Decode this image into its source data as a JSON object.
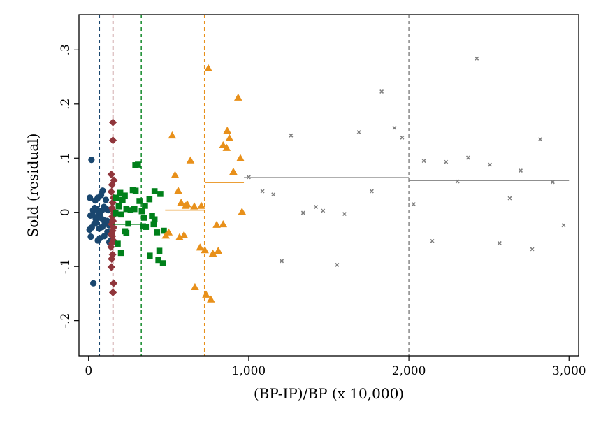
{
  "chart_data": {
    "type": "scatter",
    "title": "",
    "xlabel": "(BP-IP)/BP (x 10,000)",
    "ylabel": "Sold (residual)",
    "xlim": [
      -60,
      3060
    ],
    "ylim": [
      -0.265,
      0.365
    ],
    "grid": false,
    "legend": "none",
    "x_ticks": [
      {
        "value": 0,
        "label": "0"
      },
      {
        "value": 1000,
        "label": "1,000"
      },
      {
        "value": 2000,
        "label": "2,000"
      },
      {
        "value": 3000,
        "label": "3,000"
      }
    ],
    "y_ticks": [
      {
        "value": -0.2,
        "label": "-.2"
      },
      {
        "value": -0.1,
        "label": "-.1"
      },
      {
        "value": 0,
        "label": "0"
      },
      {
        "value": 0.1,
        "label": ".1"
      },
      {
        "value": 0.2,
        "label": ".2"
      },
      {
        "value": 0.3,
        "label": ".3"
      }
    ],
    "cutoffs": [
      {
        "x": 68,
        "color": "#1a476f"
      },
      {
        "x": 152,
        "color": "#90353b"
      },
      {
        "x": 329,
        "color": "#00801a"
      },
      {
        "x": 724,
        "color": "#e8901a"
      },
      {
        "x": 2000,
        "color": "#7f7f7f"
      }
    ],
    "series": [
      {
        "marker": "circle",
        "color": "#1a476f",
        "points": [
          [
            18,
            0.097
          ],
          [
            8,
            0.027
          ],
          [
            42,
            0.022
          ],
          [
            58,
            0.027
          ],
          [
            78,
            0.032
          ],
          [
            88,
            0.04
          ],
          [
            108,
            0.023
          ],
          [
            28,
            0.004
          ],
          [
            38,
            0.008
          ],
          [
            52,
            0.006
          ],
          [
            62,
            0.001
          ],
          [
            72,
            -0.002
          ],
          [
            82,
            0.003
          ],
          [
            96,
            0.01
          ],
          [
            112,
            0.006
          ],
          [
            122,
            0.004
          ],
          [
            12,
            -0.006
          ],
          [
            24,
            -0.004
          ],
          [
            44,
            -0.012
          ],
          [
            56,
            -0.008
          ],
          [
            76,
            -0.01
          ],
          [
            92,
            -0.014
          ],
          [
            102,
            -0.02
          ],
          [
            116,
            -0.016
          ],
          [
            128,
            -0.024
          ],
          [
            6,
            -0.032
          ],
          [
            20,
            -0.028
          ],
          [
            36,
            -0.021
          ],
          [
            48,
            -0.019
          ],
          [
            66,
            -0.03
          ],
          [
            86,
            -0.027
          ],
          [
            118,
            -0.036
          ],
          [
            132,
            -0.038
          ],
          [
            14,
            -0.045
          ],
          [
            58,
            -0.052
          ],
          [
            70,
            -0.048
          ],
          [
            98,
            -0.044
          ],
          [
            130,
            -0.055
          ],
          [
            140,
            -0.052
          ],
          [
            30,
            -0.131
          ]
        ]
      },
      {
        "marker": "diamond",
        "color": "#90353b",
        "points": [
          [
            152,
            0.166
          ],
          [
            152,
            0.133
          ],
          [
            142,
            0.07
          ],
          [
            158,
            0.059
          ],
          [
            146,
            0.051
          ],
          [
            142,
            0.038
          ],
          [
            156,
            0.027
          ],
          [
            150,
            0.018
          ],
          [
            146,
            0.008
          ],
          [
            154,
            0.003
          ],
          [
            160,
            -0.002
          ],
          [
            148,
            -0.008
          ],
          [
            152,
            -0.016
          ],
          [
            144,
            -0.022
          ],
          [
            156,
            -0.028
          ],
          [
            150,
            -0.034
          ],
          [
            142,
            -0.04
          ],
          [
            148,
            -0.044
          ],
          [
            154,
            -0.052
          ],
          [
            146,
            -0.057
          ],
          [
            140,
            -0.064
          ],
          [
            150,
            -0.078
          ],
          [
            144,
            -0.086
          ],
          [
            142,
            -0.101
          ],
          [
            156,
            -0.131
          ],
          [
            152,
            -0.148
          ]
        ]
      },
      {
        "marker": "square",
        "color": "#00801a",
        "points": [
          [
            292,
            0.087
          ],
          [
            308,
            0.088
          ],
          [
            276,
            0.041
          ],
          [
            294,
            0.04
          ],
          [
            198,
            0.036
          ],
          [
            226,
            0.031
          ],
          [
            172,
            0.027
          ],
          [
            212,
            0.023
          ],
          [
            318,
            0.021
          ],
          [
            380,
            0.024
          ],
          [
            412,
            0.039
          ],
          [
            448,
            0.034
          ],
          [
            188,
            0.011
          ],
          [
            236,
            0.006
          ],
          [
            262,
            0.004
          ],
          [
            286,
            0.006
          ],
          [
            332,
            0.002
          ],
          [
            352,
            0.012
          ],
          [
            168,
            -0.002
          ],
          [
            204,
            -0.004
          ],
          [
            346,
            -0.01
          ],
          [
            396,
            -0.007
          ],
          [
            412,
            -0.013
          ],
          [
            248,
            -0.021
          ],
          [
            340,
            -0.026
          ],
          [
            358,
            -0.027
          ],
          [
            406,
            -0.022
          ],
          [
            228,
            -0.035
          ],
          [
            236,
            -0.038
          ],
          [
            428,
            -0.037
          ],
          [
            470,
            -0.034
          ],
          [
            182,
            -0.058
          ],
          [
            202,
            -0.075
          ],
          [
            382,
            -0.08
          ],
          [
            442,
            -0.071
          ],
          [
            436,
            -0.088
          ],
          [
            464,
            -0.094
          ]
        ]
      },
      {
        "marker": "triangle",
        "color": "#e8901a",
        "points": [
          [
            748,
            0.266
          ],
          [
            934,
            0.212
          ],
          [
            522,
            0.142
          ],
          [
            866,
            0.151
          ],
          [
            840,
            0.124
          ],
          [
            880,
            0.137
          ],
          [
            862,
            0.119
          ],
          [
            948,
            0.1
          ],
          [
            636,
            0.096
          ],
          [
            904,
            0.075
          ],
          [
            540,
            0.069
          ],
          [
            560,
            0.04
          ],
          [
            578,
            0.018
          ],
          [
            606,
            0.012
          ],
          [
            616,
            0.015
          ],
          [
            660,
            0.011
          ],
          [
            704,
            0.012
          ],
          [
            958,
            0.001
          ],
          [
            500,
            -0.037
          ],
          [
            482,
            -0.043
          ],
          [
            568,
            -0.046
          ],
          [
            596,
            -0.042
          ],
          [
            800,
            -0.023
          ],
          [
            840,
            -0.022
          ],
          [
            696,
            -0.065
          ],
          [
            726,
            -0.07
          ],
          [
            776,
            -0.076
          ],
          [
            810,
            -0.071
          ],
          [
            664,
            -0.138
          ],
          [
            734,
            -0.152
          ],
          [
            764,
            -0.161
          ]
        ]
      },
      {
        "marker": "x",
        "color": "#7f7f7f",
        "points": [
          [
            2424,
            0.284
          ],
          [
            1830,
            0.223
          ],
          [
            1910,
            0.156
          ],
          [
            1688,
            0.148
          ],
          [
            1264,
            0.142
          ],
          [
            1958,
            0.138
          ],
          [
            2820,
            0.135
          ],
          [
            2370,
            0.101
          ],
          [
            2094,
            0.095
          ],
          [
            2232,
            0.093
          ],
          [
            2506,
            0.088
          ],
          [
            2698,
            0.077
          ],
          [
            1000,
            0.065
          ],
          [
            2898,
            0.056
          ],
          [
            2304,
            0.057
          ],
          [
            1086,
            0.039
          ],
          [
            1768,
            0.039
          ],
          [
            1154,
            0.033
          ],
          [
            2630,
            0.026
          ],
          [
            2030,
            0.015
          ],
          [
            1420,
            0.01
          ],
          [
            1464,
            0.003
          ],
          [
            1340,
            -0.001
          ],
          [
            1598,
            -0.003
          ],
          [
            2966,
            -0.024
          ],
          [
            2146,
            -0.053
          ],
          [
            2566,
            -0.057
          ],
          [
            2770,
            -0.068
          ],
          [
            1206,
            -0.09
          ],
          [
            1552,
            -0.097
          ]
        ]
      }
    ],
    "bin_means": [
      {
        "x": [
          152,
          329
        ],
        "y": -0.022,
        "color": "#00801a"
      },
      {
        "x": [
          478,
          724
        ],
        "y": 0.004,
        "color": "#e8901a"
      },
      {
        "x": [
          726,
          970
        ],
        "y": 0.055,
        "color": "#e8901a"
      },
      {
        "x": [
          970,
          2000
        ],
        "y": 0.064,
        "color": "#7f7f7f"
      },
      {
        "x": [
          2000,
          3000
        ],
        "y": 0.059,
        "color": "#7f7f7f"
      }
    ]
  }
}
